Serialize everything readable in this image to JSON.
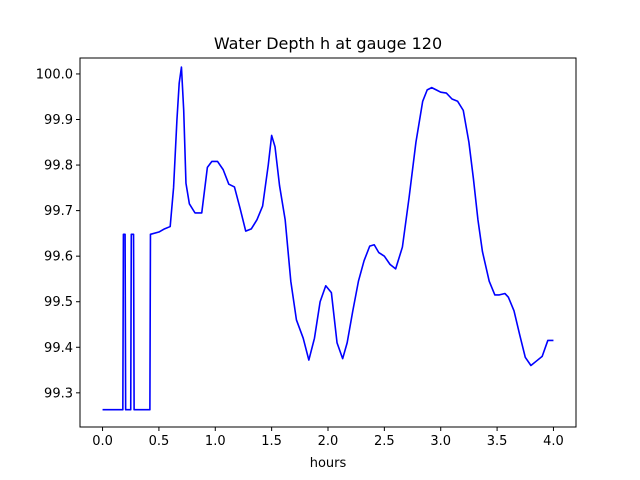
{
  "chart_data": {
    "type": "line",
    "title": "Water Depth h at gauge 120",
    "xlabel": "hours",
    "ylabel": "",
    "xlim": [
      -0.2,
      4.2
    ],
    "ylim": [
      99.225,
      100.035
    ],
    "xticks": [
      0.0,
      0.5,
      1.0,
      1.5,
      2.0,
      2.5,
      3.0,
      3.5,
      4.0
    ],
    "xtick_labels": [
      "0.0",
      "0.5",
      "1.0",
      "1.5",
      "2.0",
      "2.5",
      "3.0",
      "3.5",
      "4.0"
    ],
    "yticks": [
      99.3,
      99.4,
      99.5,
      99.6,
      99.7,
      99.8,
      99.9,
      100.0
    ],
    "ytick_labels": [
      "99.3",
      "99.4",
      "99.5",
      "99.6",
      "99.7",
      "99.8",
      "99.9",
      "100.0"
    ],
    "grid": false,
    "series": [
      {
        "color": "#0000ff",
        "x": [
          0.0,
          0.18,
          0.185,
          0.2,
          0.205,
          0.25,
          0.255,
          0.275,
          0.28,
          0.42,
          0.425,
          0.5,
          0.55,
          0.6,
          0.63,
          0.66,
          0.68,
          0.7,
          0.72,
          0.74,
          0.77,
          0.82,
          0.88,
          0.93,
          0.97,
          1.02,
          1.07,
          1.12,
          1.17,
          1.22,
          1.27,
          1.32,
          1.37,
          1.42,
          1.47,
          1.5,
          1.53,
          1.57,
          1.62,
          1.67,
          1.72,
          1.78,
          1.83,
          1.88,
          1.93,
          1.98,
          2.03,
          2.08,
          2.13,
          2.17,
          2.22,
          2.27,
          2.32,
          2.37,
          2.41,
          2.45,
          2.5,
          2.55,
          2.6,
          2.66,
          2.72,
          2.78,
          2.84,
          2.88,
          2.92,
          2.96,
          3.0,
          3.05,
          3.1,
          3.15,
          3.2,
          3.25,
          3.29,
          3.33,
          3.37,
          3.43,
          3.48,
          3.52,
          3.57,
          3.6,
          3.65,
          3.7,
          3.75,
          3.8,
          3.85,
          3.9,
          3.95,
          4.0
        ],
        "y": [
          99.263,
          99.263,
          99.648,
          99.648,
          99.263,
          99.263,
          99.648,
          99.648,
          99.263,
          99.263,
          99.648,
          99.653,
          99.66,
          99.665,
          99.75,
          99.9,
          99.98,
          100.015,
          99.92,
          99.76,
          99.715,
          99.695,
          99.695,
          99.795,
          99.808,
          99.808,
          99.79,
          99.758,
          99.752,
          99.705,
          99.655,
          99.66,
          99.68,
          99.71,
          99.8,
          99.865,
          99.84,
          99.755,
          99.68,
          99.545,
          99.46,
          99.42,
          99.372,
          99.42,
          99.5,
          99.535,
          99.52,
          99.41,
          99.375,
          99.41,
          99.48,
          99.545,
          99.59,
          99.622,
          99.625,
          99.608,
          99.6,
          99.582,
          99.572,
          99.62,
          99.73,
          99.85,
          99.94,
          99.965,
          99.97,
          99.965,
          99.96,
          99.958,
          99.945,
          99.94,
          99.92,
          99.85,
          99.77,
          99.68,
          99.61,
          99.545,
          99.515,
          99.515,
          99.518,
          99.51,
          99.48,
          99.428,
          99.378,
          99.36,
          99.37,
          99.38,
          99.415,
          99.415
        ]
      }
    ]
  }
}
